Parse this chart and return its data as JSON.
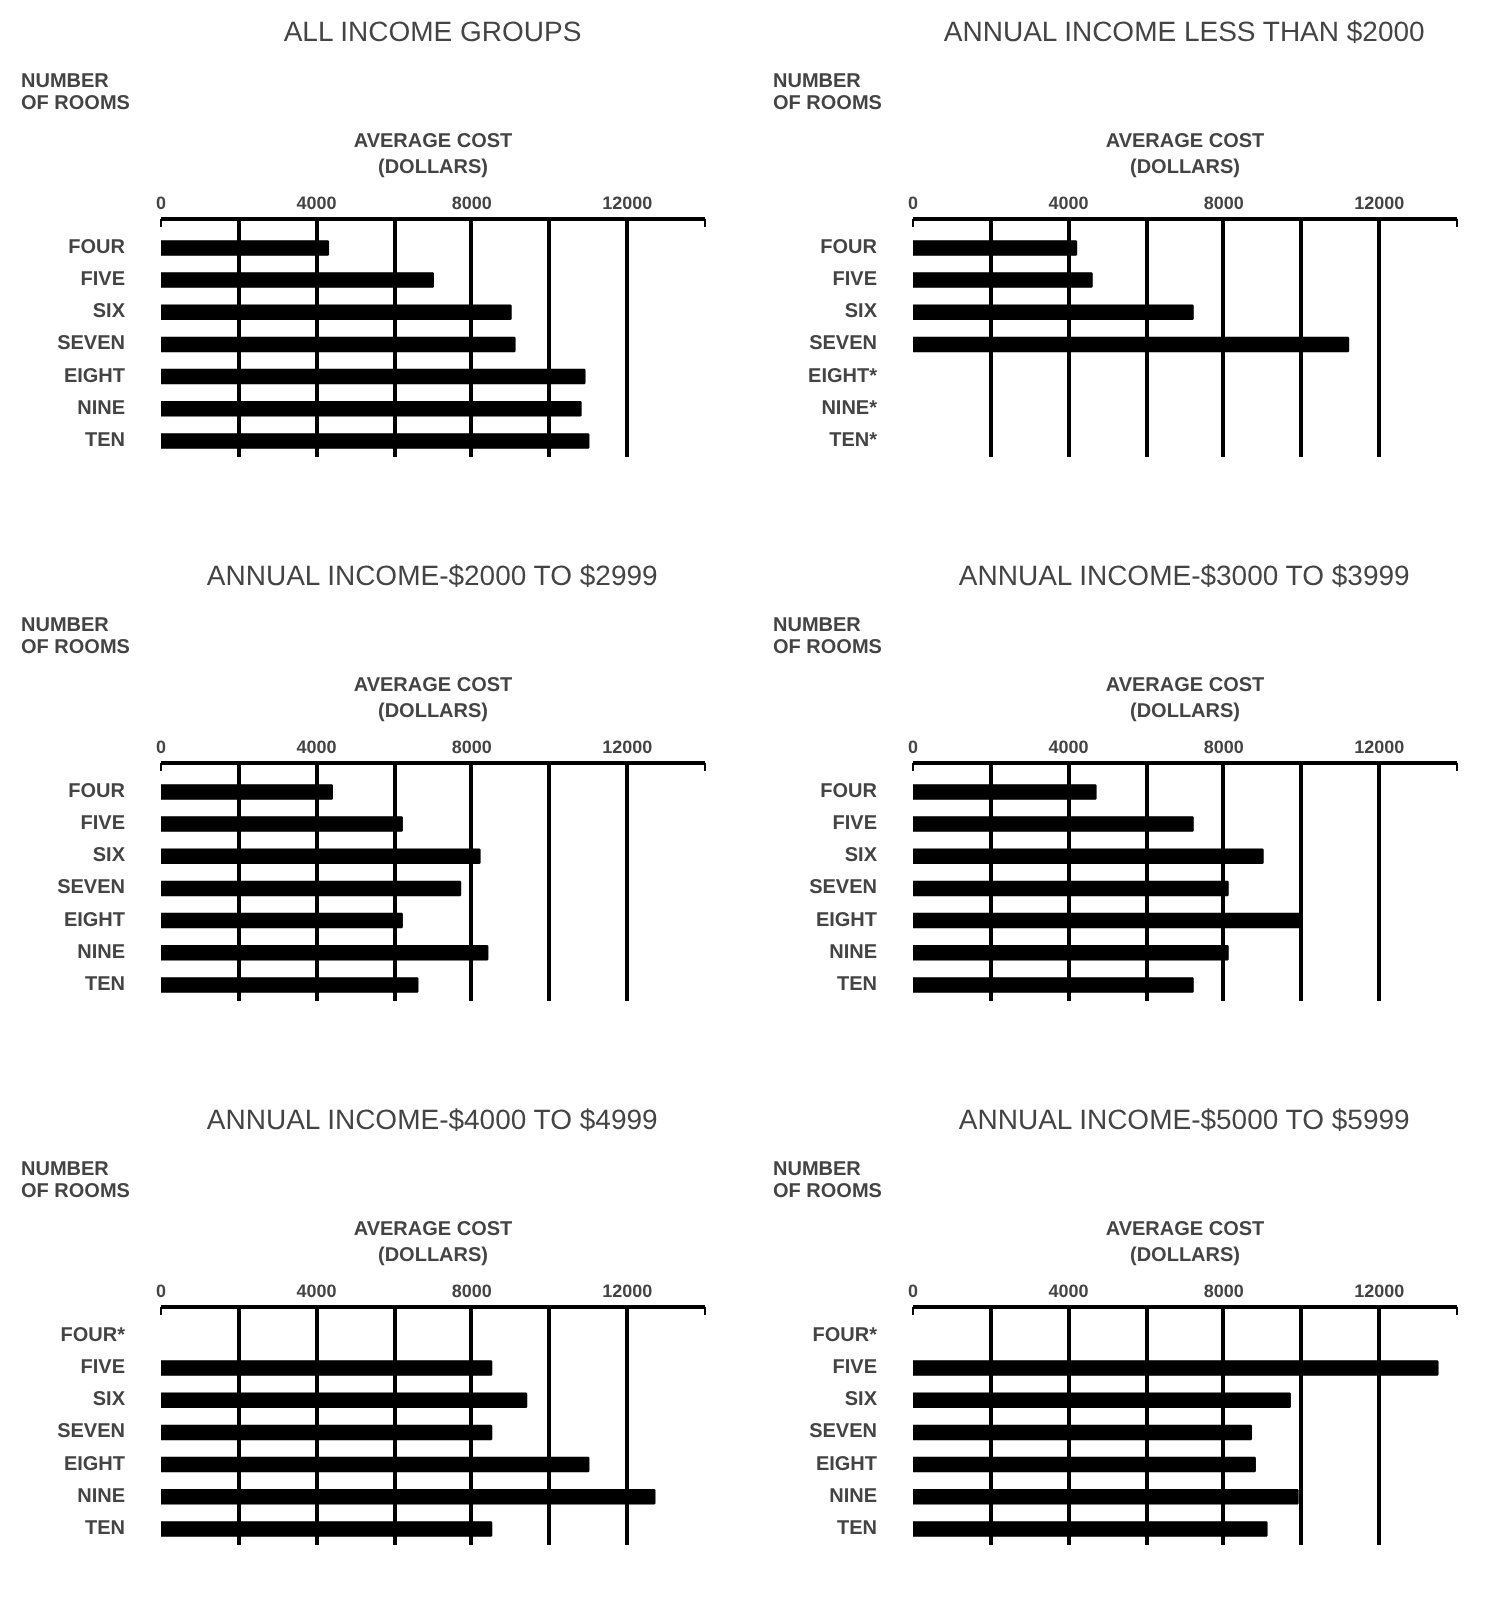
{
  "chart_data": [
    {
      "type": "bar",
      "orientation": "horizontal",
      "title": "ALL INCOME GROUPS",
      "xlabel": "AVERAGE COST\n(DOLLARS)",
      "ylabel": "NUMBER\nOF ROOMS",
      "categories": [
        "FOUR",
        "FIVE",
        "SIX",
        "SEVEN",
        "EIGHT",
        "NINE",
        "TEN"
      ],
      "values": [
        4300,
        7000,
        9000,
        9100,
        10900,
        10800,
        11000
      ],
      "color": "#000000",
      "xlim": [
        0,
        14000
      ],
      "xticks": [
        0,
        {
          "value": 2000,
          "label": null
        },
        4000,
        {
          "value": 6000,
          "label": null
        },
        8000,
        {
          "value": 10000,
          "label": null
        },
        12000,
        {
          "value": 14000,
          "label": null
        }
      ],
      "grid": "x"
    },
    {
      "type": "bar",
      "orientation": "horizontal",
      "title": "ANNUAL INCOME LESS THAN $2000",
      "xlabel": "AVERAGE COST\n(DOLLARS)",
      "ylabel": "NUMBER\nOF ROOMS",
      "categories": [
        "FOUR",
        "FIVE",
        "SIX",
        "SEVEN",
        "EIGHT*",
        "NINE*",
        "TEN*"
      ],
      "values": [
        4200,
        4600,
        7200,
        11200,
        null,
        null,
        null
      ],
      "color": "#000000",
      "xlim": [
        0,
        14000
      ],
      "xticks": [
        0,
        {
          "value": 2000,
          "label": null
        },
        4000,
        {
          "value": 6000,
          "label": null
        },
        8000,
        {
          "value": 10000,
          "label": null
        },
        12000,
        {
          "value": 14000,
          "label": null
        }
      ],
      "grid": "x"
    },
    {
      "type": "bar",
      "orientation": "horizontal",
      "title": "ANNUAL INCOME-$2000 TO $2999",
      "xlabel": "AVERAGE COST\n(DOLLARS)",
      "ylabel": "NUMBER\nOF ROOMS",
      "categories": [
        "FOUR",
        "FIVE",
        "SIX",
        "SEVEN",
        "EIGHT",
        "NINE",
        "TEN"
      ],
      "values": [
        4400,
        6200,
        8200,
        7700,
        6200,
        8400,
        6600
      ],
      "color": "#000000",
      "xlim": [
        0,
        14000
      ],
      "xticks": [
        0,
        {
          "value": 2000,
          "label": null
        },
        4000,
        {
          "value": 6000,
          "label": null
        },
        8000,
        {
          "value": 10000,
          "label": null
        },
        12000,
        {
          "value": 14000,
          "label": null
        }
      ],
      "grid": "x"
    },
    {
      "type": "bar",
      "orientation": "horizontal",
      "title": "ANNUAL INCOME-$3000 TO $3999",
      "xlabel": "AVERAGE COST\n(DOLLARS)",
      "ylabel": "NUMBER\nOF ROOMS",
      "categories": [
        "FOUR",
        "FIVE",
        "SIX",
        "SEVEN",
        "EIGHT",
        "NINE",
        "TEN"
      ],
      "values": [
        4700,
        7200,
        9000,
        8100,
        10000,
        8100,
        7200
      ],
      "color": "#000000",
      "xlim": [
        0,
        14000
      ],
      "xticks": [
        0,
        {
          "value": 2000,
          "label": null
        },
        4000,
        {
          "value": 6000,
          "label": null
        },
        8000,
        {
          "value": 10000,
          "label": null
        },
        12000,
        {
          "value": 14000,
          "label": null
        }
      ],
      "grid": "x"
    },
    {
      "type": "bar",
      "orientation": "horizontal",
      "title": "ANNUAL INCOME-$4000 TO $4999",
      "xlabel": "AVERAGE COST\n(DOLLARS)",
      "ylabel": "NUMBER\nOF ROOMS",
      "categories": [
        "FOUR*",
        "FIVE",
        "SIX",
        "SEVEN",
        "EIGHT",
        "NINE",
        "TEN"
      ],
      "values": [
        null,
        8500,
        9400,
        8500,
        11000,
        12700,
        8500
      ],
      "color": "#000000",
      "xlim": [
        0,
        14000
      ],
      "xticks": [
        0,
        {
          "value": 2000,
          "label": null
        },
        4000,
        {
          "value": 6000,
          "label": null
        },
        8000,
        {
          "value": 10000,
          "label": null
        },
        12000,
        {
          "value": 14000,
          "label": null
        }
      ],
      "grid": "x"
    },
    {
      "type": "bar",
      "orientation": "horizontal",
      "title": "ANNUAL INCOME-$5000 TO $5999",
      "xlabel": "AVERAGE COST\n(DOLLARS)",
      "ylabel": "NUMBER\nOF ROOMS",
      "categories": [
        "FOUR*",
        "FIVE",
        "SIX",
        "SEVEN",
        "EIGHT",
        "NINE",
        "TEN"
      ],
      "values": [
        null,
        13500,
        9700,
        8700,
        8800,
        9900,
        9100
      ],
      "color": "#000000",
      "xlim": [
        0,
        14000
      ],
      "xticks": [
        0,
        {
          "value": 2000,
          "label": null
        },
        4000,
        {
          "value": 6000,
          "label": null
        },
        8000,
        {
          "value": 10000,
          "label": null
        },
        12000,
        {
          "value": 14000,
          "label": null
        }
      ],
      "grid": "x"
    }
  ]
}
